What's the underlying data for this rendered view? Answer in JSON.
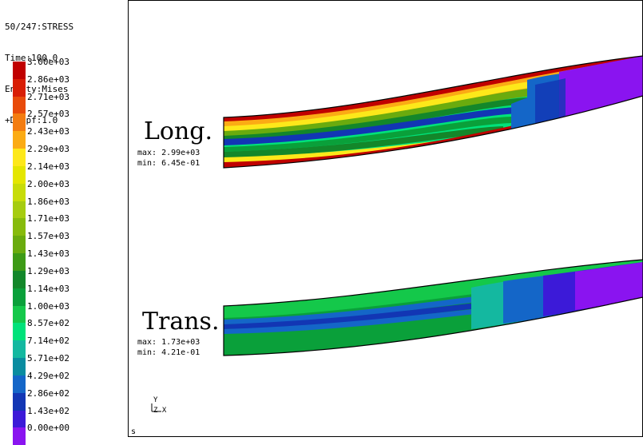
{
  "header": {
    "step": "50/247:STRESS",
    "time": "Time:100.0",
    "entity": "Entity:Mises",
    "dispf": "+Dispf:1.0"
  },
  "legend": {
    "labels": [
      "3.00e+03",
      "2.86e+03",
      "2.71e+03",
      "2.57e+03",
      "2.43e+03",
      "2.29e+03",
      "2.14e+03",
      "2.00e+03",
      "1.86e+03",
      "1.71e+03",
      "1.57e+03",
      "1.43e+03",
      "1.29e+03",
      "1.14e+03",
      "1.00e+03",
      "8.57e+02",
      "7.14e+02",
      "5.71e+02",
      "4.29e+02",
      "2.86e+02",
      "1.43e+02",
      "0.00e+00"
    ],
    "colors": [
      "#c00000",
      "#d81e05",
      "#e84a0a",
      "#f37c10",
      "#fbab14",
      "#fde81a",
      "#e4e600",
      "#c7dc08",
      "#a6cc10",
      "#87bb0c",
      "#6aab0e",
      "#3d9a16",
      "#13872a",
      "#0aa03a",
      "#14c84a",
      "#00e27a",
      "#14b8a0",
      "#0a8ca0",
      "#1466c8",
      "#1236b4",
      "#3c1ad8",
      "#8a14f0"
    ]
  },
  "panels": {
    "long": {
      "title": "Long.",
      "max": "max: 2.99e+03",
      "min": "min: 6.45e-01"
    },
    "trans": {
      "title": "Trans.",
      "max": "max: 1.73e+03",
      "min": "min: 4.21e-01"
    }
  },
  "axes": {
    "y": "Y",
    "zx": "Z X"
  },
  "corner_label": "s"
}
